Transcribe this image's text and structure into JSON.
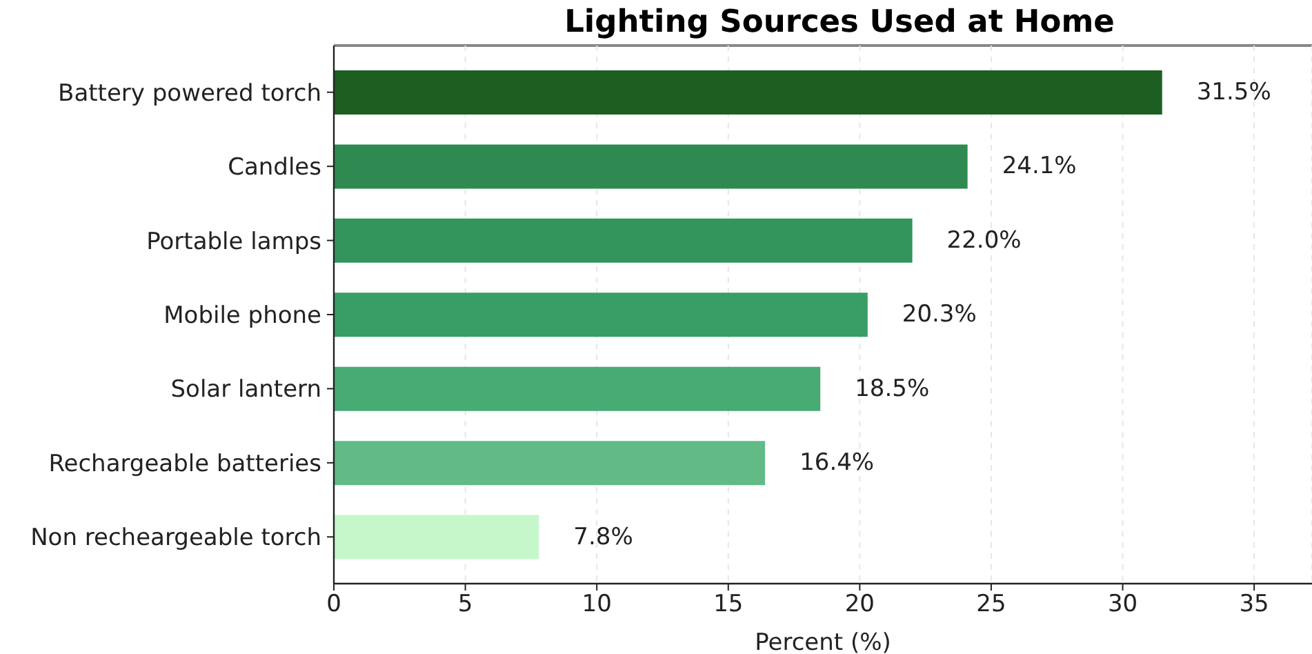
{
  "chart_data": {
    "type": "bar",
    "orientation": "horizontal",
    "title": "Lighting Sources Used at Home",
    "xlabel": "Percent (%)",
    "categories": [
      "Battery powered torch",
      "Candles",
      "Portable lamps",
      "Mobile phone",
      "Solar lantern",
      "Rechargeable batteries",
      "Non recheargeable torch"
    ],
    "values": [
      31.5,
      24.1,
      22.0,
      20.3,
      18.5,
      16.4,
      7.8
    ],
    "colors": [
      "#1d5e21",
      "#2e8a50",
      "#33955c",
      "#389e65",
      "#47ab73",
      "#62ba86",
      "#c6f7cb"
    ],
    "value_labels": [
      "31.5%",
      "24.1%",
      "22.0%",
      "20.3%",
      "18.5%",
      "16.4%",
      "7.8%"
    ],
    "xlim": [
      0,
      37.2
    ],
    "xticks": [
      0,
      5,
      10,
      15,
      20,
      25,
      30,
      35
    ],
    "grid": "x"
  }
}
